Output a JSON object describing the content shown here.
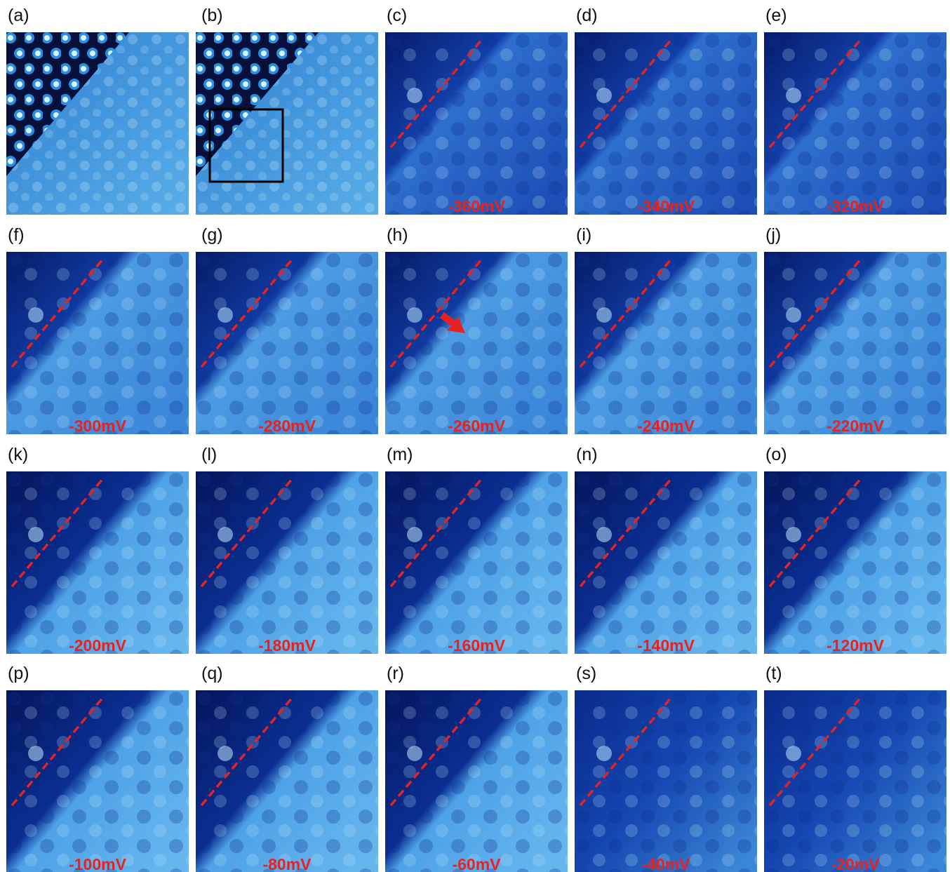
{
  "panels": [
    {
      "label": "(a)"
    },
    {
      "label": "(b)"
    },
    {
      "label": "(c)",
      "voltage": "-360mV"
    },
    {
      "label": "(d)",
      "voltage": "-340mV"
    },
    {
      "label": "(e)",
      "voltage": "-320mV"
    },
    {
      "label": "(f)",
      "voltage": "-300mV"
    },
    {
      "label": "(g)",
      "voltage": "-280mV"
    },
    {
      "label": "(h)",
      "voltage": "-260mV"
    },
    {
      "label": "(i)",
      "voltage": "-240mV"
    },
    {
      "label": "(j)",
      "voltage": "-220mV"
    },
    {
      "label": "(k)",
      "voltage": "-200mV"
    },
    {
      "label": "(l)",
      "voltage": "-180mV"
    },
    {
      "label": "(m)",
      "voltage": "-160mV"
    },
    {
      "label": "(n)",
      "voltage": "-140mV"
    },
    {
      "label": "(o)",
      "voltage": "-120mV"
    },
    {
      "label": "(p)",
      "voltage": "-100mV"
    },
    {
      "label": "(q)",
      "voltage": "-80mV"
    },
    {
      "label": "(r)",
      "voltage": "-60mV"
    },
    {
      "label": "(s)",
      "voltage": "-40mV"
    },
    {
      "label": "(t)",
      "voltage": "-20mV"
    }
  ]
}
